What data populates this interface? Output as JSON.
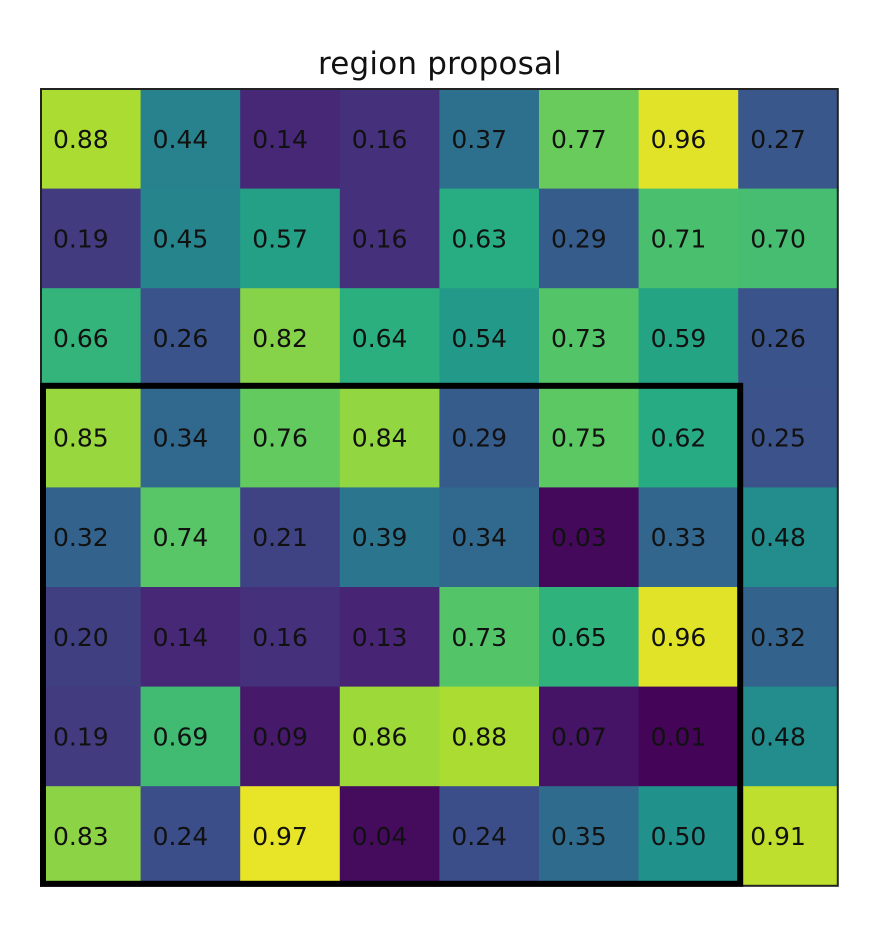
{
  "chart_data": {
    "type": "heatmap",
    "title": "region proposal",
    "colormap": "viridis",
    "value_range": [
      0,
      1
    ],
    "rows": 8,
    "cols": 8,
    "values": [
      [
        0.88,
        0.44,
        0.14,
        0.16,
        0.37,
        0.77,
        0.96,
        0.27
      ],
      [
        0.19,
        0.45,
        0.57,
        0.16,
        0.63,
        0.29,
        0.71,
        0.7
      ],
      [
        0.66,
        0.26,
        0.82,
        0.64,
        0.54,
        0.73,
        0.59,
        0.26
      ],
      [
        0.85,
        0.34,
        0.76,
        0.84,
        0.29,
        0.75,
        0.62,
        0.25
      ],
      [
        0.32,
        0.74,
        0.21,
        0.39,
        0.34,
        0.03,
        0.33,
        0.48
      ],
      [
        0.2,
        0.14,
        0.16,
        0.13,
        0.73,
        0.65,
        0.96,
        0.32
      ],
      [
        0.19,
        0.69,
        0.09,
        0.86,
        0.88,
        0.07,
        0.01,
        0.48
      ],
      [
        0.83,
        0.24,
        0.97,
        0.04,
        0.24,
        0.35,
        0.5,
        0.91
      ]
    ],
    "highlight_region": {
      "row_start": 3,
      "row_end": 7,
      "col_start": 0,
      "col_end": 6
    }
  }
}
